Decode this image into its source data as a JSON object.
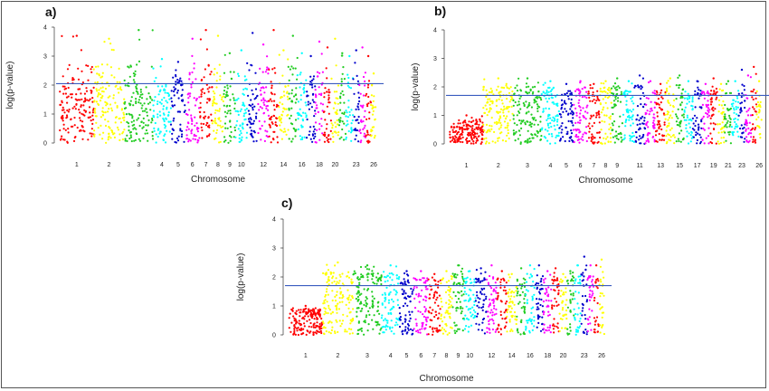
{
  "chart_data": [
    {
      "type": "scatter",
      "panel_label": "a)",
      "xlabel": "Chromosome",
      "ylabel": "log(p-value)",
      "ylim": [
        0,
        4
      ],
      "yticks": [
        "0",
        "1",
        "2",
        "3",
        "4"
      ],
      "threshold": 2.05,
      "threshold_color": "#3a5cc0",
      "chromosomes": [
        "1",
        "2",
        "3",
        "4",
        "5",
        "6",
        "7",
        "8",
        "9",
        "10",
        "11",
        "12",
        "13",
        "14",
        "15",
        "16",
        "17",
        "18",
        "19",
        "20",
        "21",
        "22",
        "23",
        "24",
        "25",
        "26"
      ],
      "xtick_labels": [
        "1",
        "2",
        "3",
        "4",
        "5",
        "6",
        "7",
        "8",
        "9",
        "10",
        "12",
        "14",
        "16",
        "18",
        "20",
        "23",
        "26"
      ],
      "chrom_widths": [
        38,
        34,
        32,
        20,
        16,
        16,
        14,
        13,
        13,
        13,
        12,
        12,
        11,
        11,
        10,
        10,
        10,
        9,
        9,
        8,
        8,
        8,
        7,
        7,
        6,
        6
      ],
      "max_values": [
        3.7,
        3.6,
        3.9,
        2.9,
        2.8,
        3.6,
        3.9,
        3.7,
        3.1,
        3.2,
        3.8,
        3.4,
        3.9,
        3.2,
        3.7,
        3.1,
        3.0,
        3.5,
        3.3,
        3.6,
        3.1,
        3.0,
        3.2,
        3.3,
        3.0,
        2.4
      ],
      "base_values": [
        1.9,
        2.1,
        2.0,
        1.9,
        2.0,
        1.8,
        2.1,
        1.9,
        2.0,
        1.9,
        1.9,
        2.0,
        1.8,
        1.9,
        1.9,
        2.0,
        1.8,
        1.9,
        1.9,
        1.8,
        1.8,
        1.9,
        1.8,
        1.8,
        1.9,
        1.7
      ],
      "colors": [
        "#ff0000",
        "#ffff00",
        "#22cc22",
        "#00ffff",
        "#0000cc",
        "#ff00ff",
        "#ff0000",
        "#ffff00",
        "#22cc22",
        "#00ffff",
        "#0000cc",
        "#ff00ff",
        "#ff0000",
        "#ffff00",
        "#22cc22",
        "#00ffff",
        "#0000cc",
        "#ff00ff",
        "#ff0000",
        "#ffff00",
        "#22cc22",
        "#00ffff",
        "#0000cc",
        "#ff00ff",
        "#ff0000",
        "#ffff00"
      ]
    },
    {
      "type": "scatter",
      "panel_label": "b)",
      "xlabel": "Chromosome",
      "ylabel": "log(p-value)",
      "ylim": [
        0,
        4
      ],
      "yticks": [
        "0",
        "1",
        "2",
        "3",
        "4"
      ],
      "threshold": 1.7,
      "threshold_color": "#3a5cc0",
      "chromosomes": [
        "1",
        "2",
        "3",
        "4",
        "5",
        "6",
        "7",
        "8",
        "9",
        "10",
        "11",
        "12",
        "13",
        "14",
        "15",
        "16",
        "17",
        "18",
        "19",
        "20",
        "21",
        "22",
        "23",
        "24",
        "25",
        "26"
      ],
      "xtick_labels": [
        "1",
        "2",
        "3",
        "4",
        "5",
        "6",
        "7",
        "8",
        "9",
        "11",
        "13",
        "15",
        "17",
        "19",
        "21",
        "23",
        "26"
      ],
      "chrom_widths": [
        38,
        34,
        32,
        20,
        16,
        16,
        14,
        13,
        13,
        13,
        12,
        12,
        11,
        11,
        10,
        10,
        10,
        9,
        9,
        8,
        8,
        8,
        7,
        7,
        6,
        6
      ],
      "max_values": [
        1.0,
        2.3,
        2.3,
        2.2,
        2.1,
        2.2,
        2.1,
        2.2,
        2.3,
        2.2,
        2.4,
        2.2,
        2.1,
        2.3,
        2.4,
        2.2,
        2.2,
        2.1,
        2.3,
        2.1,
        2.2,
        2.2,
        2.6,
        2.4,
        2.7,
        2.2
      ],
      "base_values": [
        0.7,
        1.8,
        1.8,
        1.8,
        1.7,
        1.8,
        1.7,
        1.8,
        1.8,
        1.7,
        1.8,
        1.7,
        1.7,
        1.8,
        1.8,
        1.7,
        1.7,
        1.7,
        1.8,
        1.7,
        1.7,
        1.7,
        1.7,
        1.7,
        1.8,
        1.6
      ],
      "colors": [
        "#ff0000",
        "#ffff00",
        "#22cc22",
        "#00ffff",
        "#0000cc",
        "#ff00ff",
        "#ff0000",
        "#ffff00",
        "#22cc22",
        "#00ffff",
        "#0000cc",
        "#ff00ff",
        "#ff0000",
        "#ffff00",
        "#22cc22",
        "#00ffff",
        "#0000cc",
        "#ff00ff",
        "#ff0000",
        "#ffff00",
        "#22cc22",
        "#00ffff",
        "#0000cc",
        "#ff00ff",
        "#ff0000",
        "#ffff00"
      ]
    },
    {
      "type": "scatter",
      "panel_label": "c)",
      "xlabel": "Chromosome",
      "ylabel": "log(p-value)",
      "ylim": [
        0,
        4
      ],
      "yticks": [
        "0",
        "1",
        "2",
        "3",
        "4"
      ],
      "threshold": 1.7,
      "threshold_color": "#3a5cc0",
      "chromosomes": [
        "1",
        "2",
        "3",
        "4",
        "5",
        "6",
        "7",
        "8",
        "9",
        "10",
        "11",
        "12",
        "13",
        "14",
        "15",
        "16",
        "17",
        "18",
        "19",
        "20",
        "21",
        "22",
        "23",
        "24",
        "25",
        "26"
      ],
      "xtick_labels": [
        "1",
        "2",
        "3",
        "4",
        "5",
        "6",
        "7",
        "8",
        "9",
        "10",
        "12",
        "14",
        "16",
        "18",
        "20",
        "23",
        "26"
      ],
      "chrom_widths": [
        38,
        34,
        32,
        20,
        16,
        16,
        14,
        13,
        13,
        13,
        12,
        12,
        11,
        11,
        10,
        10,
        10,
        9,
        9,
        8,
        8,
        8,
        7,
        7,
        6,
        6
      ],
      "max_values": [
        1.0,
        2.5,
        2.4,
        2.4,
        2.2,
        2.2,
        2.1,
        2.2,
        2.4,
        2.2,
        2.3,
        2.4,
        2.2,
        2.1,
        2.3,
        2.4,
        2.4,
        2.2,
        2.3,
        2.1,
        2.2,
        2.4,
        2.7,
        2.4,
        2.4,
        2.6
      ],
      "base_values": [
        0.8,
        1.9,
        1.9,
        1.9,
        1.8,
        1.8,
        1.8,
        1.8,
        1.9,
        1.8,
        1.8,
        1.9,
        1.8,
        1.7,
        1.8,
        1.9,
        1.8,
        1.8,
        1.8,
        1.8,
        1.8,
        1.8,
        1.9,
        1.8,
        1.8,
        1.7
      ],
      "colors": [
        "#ff0000",
        "#ffff00",
        "#22cc22",
        "#00ffff",
        "#0000cc",
        "#ff00ff",
        "#ff0000",
        "#ffff00",
        "#22cc22",
        "#00ffff",
        "#0000cc",
        "#ff00ff",
        "#ff0000",
        "#ffff00",
        "#22cc22",
        "#00ffff",
        "#0000cc",
        "#ff00ff",
        "#ff0000",
        "#ffff00",
        "#22cc22",
        "#00ffff",
        "#0000cc",
        "#ff00ff",
        "#ff0000",
        "#ffff00"
      ]
    }
  ]
}
